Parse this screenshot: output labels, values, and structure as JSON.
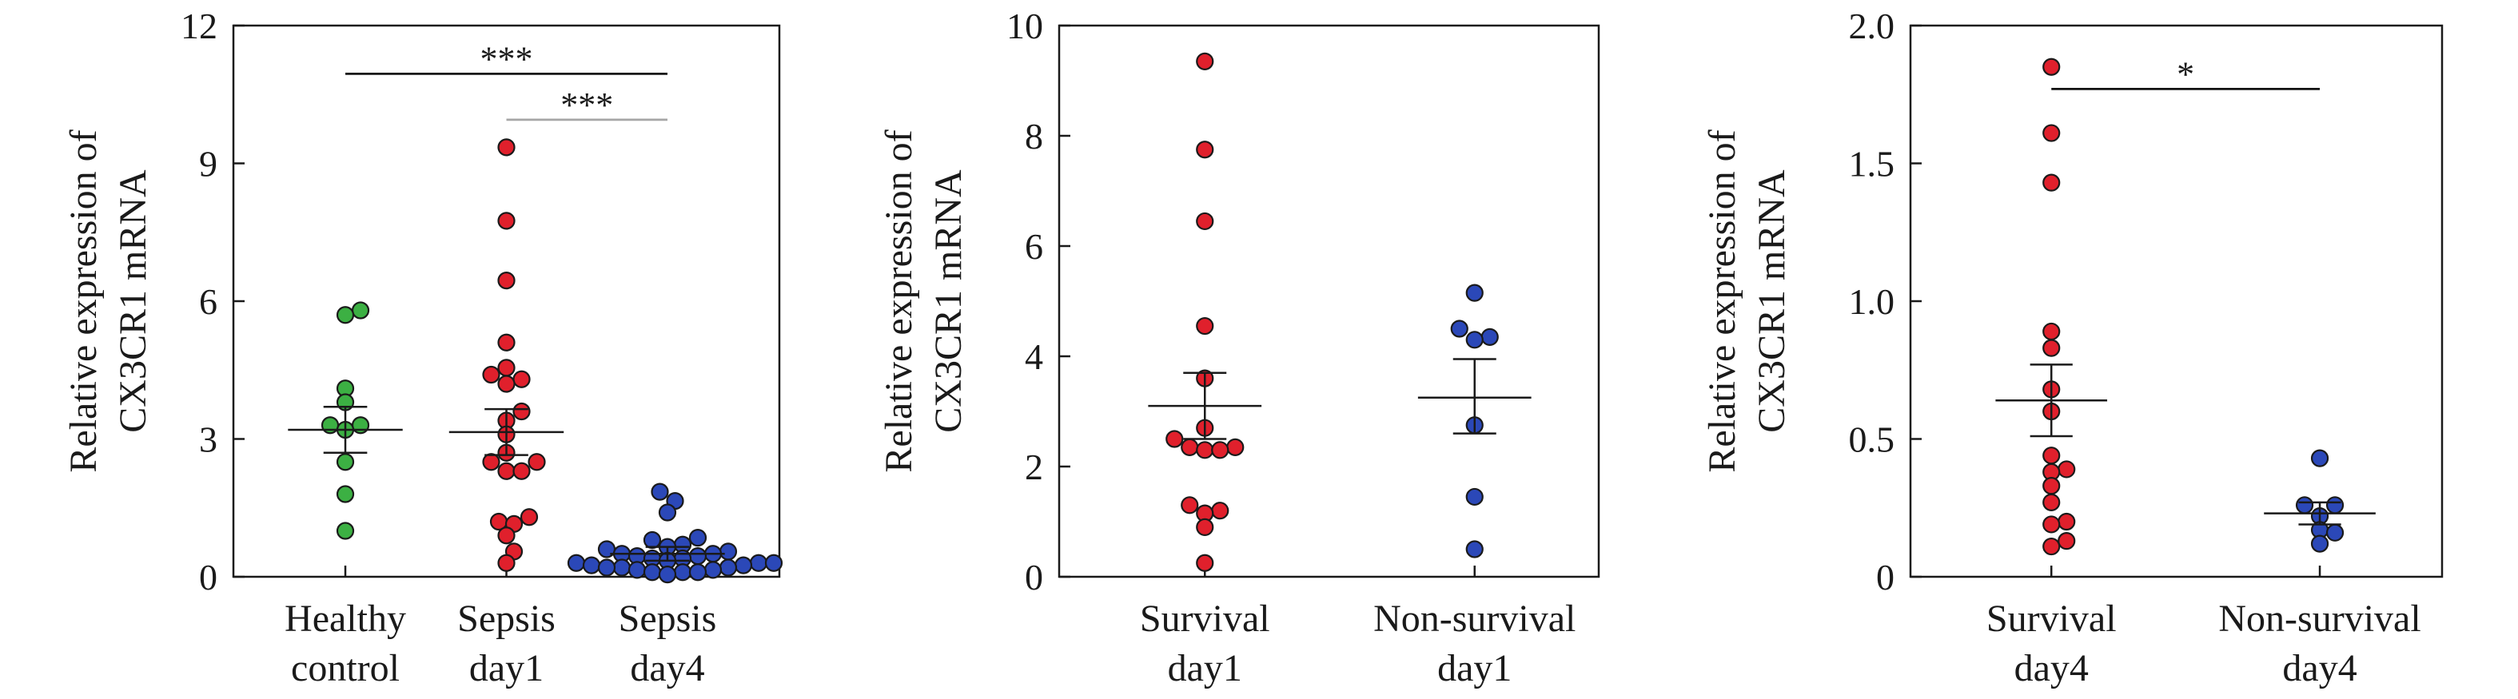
{
  "chart_data": [
    {
      "type": "scatter",
      "ylabel": [
        "Relative expression of",
        "CX3CR1 mRNA"
      ],
      "ylim": [
        0,
        12
      ],
      "yticks": [
        0,
        3,
        6,
        9,
        12
      ],
      "ytick_labels": [
        "0",
        "3",
        "6",
        "9",
        "12"
      ],
      "categories": [
        {
          "name": "Healthy control",
          "label_lines": [
            "Healthy",
            "control"
          ],
          "color": "#3cb043",
          "values": [
            5.8,
            5.7,
            4.1,
            3.8,
            3.3,
            3.3,
            3.2,
            2.5,
            1.8,
            1.0
          ],
          "mean": 3.2,
          "sem_low": 2.7,
          "sem_high": 3.7
        },
        {
          "name": "Sepsis day1",
          "label_lines": [
            "Sepsis",
            "day1"
          ],
          "color": "#e0202c",
          "values": [
            9.35,
            7.75,
            6.45,
            5.1,
            4.55,
            4.4,
            4.3,
            4.2,
            3.6,
            3.4,
            3.1,
            2.7,
            2.5,
            2.5,
            2.3,
            2.3,
            1.3,
            1.2,
            1.15,
            0.9,
            0.55,
            0.3
          ],
          "mean": 3.15,
          "sem_low": 2.65,
          "sem_high": 3.65
        },
        {
          "name": "Sepsis day4",
          "label_lines": [
            "Sepsis",
            "day4"
          ],
          "color": "#2b48b8",
          "values": [
            1.85,
            1.65,
            1.4,
            0.85,
            0.8,
            0.7,
            0.65,
            0.6,
            0.55,
            0.5,
            0.5,
            0.45,
            0.45,
            0.4,
            0.4,
            0.35,
            0.3,
            0.3,
            0.3,
            0.25,
            0.25,
            0.2,
            0.2,
            0.2,
            0.15,
            0.15,
            0.1,
            0.1,
            0.1,
            0.05
          ],
          "mean": 0.5,
          "sem_low": 0.35,
          "sem_high": 0.65
        }
      ],
      "significance": [
        {
          "from": 0,
          "to": 2,
          "label": "***",
          "y": 10.95,
          "color": "#111111"
        },
        {
          "from": 1,
          "to": 2,
          "label": "***",
          "y": 9.95,
          "color": "#a6a6a6"
        }
      ]
    },
    {
      "type": "scatter",
      "ylabel": [
        "Relative expression of",
        "CX3CR1 mRNA"
      ],
      "ylim": [
        0,
        10
      ],
      "yticks": [
        0,
        2,
        4,
        6,
        8,
        10
      ],
      "ytick_labels": [
        "0",
        "2",
        "4",
        "6",
        "8",
        "10"
      ],
      "categories": [
        {
          "name": "Survival day1",
          "label_lines": [
            "Survival",
            "day1"
          ],
          "color": "#e0202c",
          "values": [
            9.35,
            7.75,
            6.45,
            4.55,
            3.6,
            2.7,
            2.5,
            2.35,
            2.35,
            2.3,
            2.3,
            1.3,
            1.2,
            1.15,
            0.9,
            0.25
          ],
          "mean": 3.1,
          "sem_low": 2.5,
          "sem_high": 3.7
        },
        {
          "name": "Non-survival day1",
          "label_lines": [
            "Non-survival",
            "day1"
          ],
          "color": "#2b48b8",
          "values": [
            5.15,
            4.5,
            4.35,
            4.3,
            2.75,
            1.45,
            0.5
          ],
          "mean": 3.25,
          "sem_low": 2.6,
          "sem_high": 3.95
        }
      ],
      "significance": []
    },
    {
      "type": "scatter",
      "ylabel": [
        "Relative expression of",
        "CX3CR1 mRNA"
      ],
      "ylim": [
        0,
        2.0
      ],
      "yticks": [
        0,
        0.5,
        1.0,
        1.5,
        2.0
      ],
      "ytick_labels": [
        "0",
        "0.5",
        "1.0",
        "1.5",
        "2.0"
      ],
      "categories": [
        {
          "name": "Survival day4",
          "label_lines": [
            "Survival",
            "day4"
          ],
          "color": "#e0202c",
          "values": [
            1.85,
            1.61,
            1.43,
            0.89,
            0.83,
            0.68,
            0.6,
            0.44,
            0.39,
            0.38,
            0.33,
            0.27,
            0.2,
            0.19,
            0.13,
            0.11
          ],
          "mean": 0.64,
          "sem_low": 0.51,
          "sem_high": 0.77
        },
        {
          "name": "Non-survival day4",
          "label_lines": [
            "Non-survival",
            "day4"
          ],
          "color": "#2b48b8",
          "values": [
            0.43,
            0.26,
            0.26,
            0.22,
            0.17,
            0.16,
            0.12
          ],
          "mean": 0.23,
          "sem_low": 0.19,
          "sem_high": 0.27
        }
      ],
      "significance": [
        {
          "from": 0,
          "to": 1,
          "label": "*",
          "y": 1.77,
          "color": "#111111"
        }
      ]
    }
  ]
}
